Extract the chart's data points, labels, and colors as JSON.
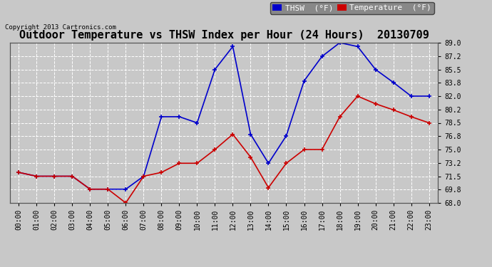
{
  "title": "Outdoor Temperature vs THSW Index per Hour (24 Hours)  20130709",
  "copyright": "Copyright 2013 Cartronics.com",
  "hours": [
    "00:00",
    "01:00",
    "02:00",
    "03:00",
    "04:00",
    "05:00",
    "06:00",
    "07:00",
    "08:00",
    "09:00",
    "10:00",
    "11:00",
    "12:00",
    "13:00",
    "14:00",
    "15:00",
    "16:00",
    "17:00",
    "18:00",
    "19:00",
    "20:00",
    "21:00",
    "22:00",
    "23:00"
  ],
  "thsw": [
    72.0,
    71.5,
    71.5,
    71.5,
    69.8,
    69.8,
    69.8,
    71.5,
    79.3,
    79.3,
    78.5,
    85.5,
    88.5,
    77.0,
    73.2,
    76.8,
    84.0,
    87.2,
    89.0,
    88.5,
    85.5,
    83.8,
    82.0,
    82.0
  ],
  "temp": [
    72.0,
    71.5,
    71.5,
    71.5,
    69.8,
    69.8,
    68.0,
    71.5,
    72.0,
    73.2,
    73.2,
    75.0,
    77.0,
    74.0,
    70.0,
    73.2,
    75.0,
    75.0,
    79.3,
    82.0,
    81.0,
    80.2,
    79.3,
    78.5
  ],
  "thsw_color": "#0000cc",
  "temp_color": "#cc0000",
  "bg_color": "#c8c8c8",
  "plot_bg_color": "#c8c8c8",
  "grid_color": "#ffffff",
  "ylim_min": 68.0,
  "ylim_max": 89.0,
  "yticks": [
    68.0,
    69.8,
    71.5,
    73.2,
    75.0,
    76.8,
    78.5,
    80.2,
    82.0,
    83.8,
    85.5,
    87.2,
    89.0
  ],
  "legend_thsw_label": "THSW  (°F)",
  "legend_temp_label": "Temperature  (°F)",
  "title_fontsize": 11,
  "tick_fontsize": 7,
  "copyright_fontsize": 6.5,
  "legend_fontsize": 8
}
